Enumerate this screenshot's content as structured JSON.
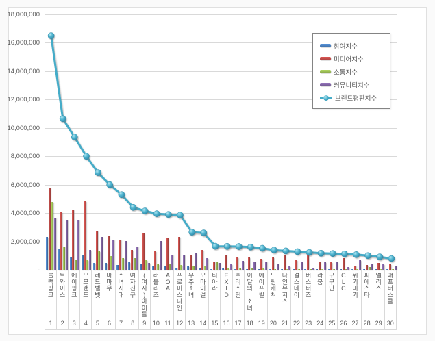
{
  "chart_data": {
    "type": "bar",
    "subtype": "grouped-bars-with-line-overlay",
    "title": "",
    "xlabel": "",
    "ylabel": "",
    "grid": true,
    "legend_position": "top-right",
    "y_axis": {
      "min": 0,
      "max": 18000000,
      "tick_step": 2000000,
      "tick_labels": [
        "18,000,000",
        "16,000,000",
        "14,000,000",
        "12,000,000",
        "10,000,000",
        "8,000,000",
        "6,000,000",
        "4,000,000",
        "2,000,000",
        "-"
      ]
    },
    "ranks": [
      "1",
      "2",
      "3",
      "4",
      "5",
      "6",
      "7",
      "8",
      "9",
      "10",
      "11",
      "12",
      "13",
      "14",
      "15",
      "16",
      "17",
      "18",
      "19",
      "20",
      "21",
      "22",
      "23",
      "24",
      "25",
      "26",
      "27",
      "28",
      "29",
      "30"
    ],
    "categories": [
      "블랙핑크",
      "트와이스",
      "에이핑크",
      "모모랜드",
      "레드벨벳",
      "마마무",
      "소녀시대",
      "여자친구",
      "(여자)아이들",
      "러블리즈",
      "AOA",
      "프로미스나인",
      "우주소녀",
      "오마이걸",
      "티아라",
      "EXID",
      "프리스틴",
      "이달의 소녀",
      "에이프릴",
      "드림캐쳐",
      "나인뮤지스",
      "걸스데이",
      "버스터즈",
      "라붐",
      "구구단",
      "CLC",
      "위키미키",
      "피에스타",
      "엘리스",
      "애프터스쿨"
    ],
    "series": [
      {
        "name": "참여지수",
        "key": "participation-index",
        "type": "bar",
        "color": "#4A7EBB",
        "values": [
          2300000,
          1450000,
          850000,
          1050000,
          480000,
          500000,
          360000,
          550000,
          450000,
          220000,
          220000,
          160000,
          220000,
          150000,
          60000,
          80000,
          60000,
          60000,
          60000,
          40000,
          30000,
          40000,
          20000,
          30000,
          30000,
          30000,
          30000,
          30000,
          20000,
          20000
        ]
      },
      {
        "name": "미디어지수",
        "key": "media-index",
        "type": "bar",
        "color": "#BE4B48",
        "values": [
          5780000,
          4050000,
          4270000,
          4850000,
          2730000,
          2410000,
          2100000,
          1400000,
          2570000,
          1280000,
          2200000,
          2300000,
          1020000,
          1400000,
          600000,
          1050000,
          860000,
          860000,
          750000,
          880000,
          1020000,
          660000,
          1080000,
          560000,
          550000,
          840000,
          310000,
          320000,
          470000,
          400000
        ]
      },
      {
        "name": "소통지수",
        "key": "communication-index",
        "type": "bar",
        "color": "#98B954",
        "values": [
          4760000,
          1620000,
          700000,
          700000,
          1310000,
          960000,
          820000,
          800000,
          660000,
          400000,
          400000,
          340000,
          260000,
          250000,
          520000,
          120000,
          100000,
          80000,
          110000,
          50000,
          50000,
          60000,
          40000,
          50000,
          40000,
          40000,
          50000,
          200000,
          40000,
          60000
        ]
      },
      {
        "name": "커뮤니티지수",
        "key": "community-index",
        "type": "bar",
        "color": "#8064A2",
        "values": [
          3660000,
          3530000,
          3530000,
          1400000,
          2330000,
          2130000,
          2020000,
          1650000,
          470000,
          2050000,
          1080000,
          1050000,
          1150000,
          800000,
          480000,
          400000,
          620000,
          600000,
          600000,
          420000,
          230000,
          520000,
          90000,
          530000,
          530000,
          210000,
          680000,
          450000,
          380000,
          310000
        ]
      },
      {
        "name": "브랜드평판지수",
        "key": "brand-reputation-index",
        "type": "line",
        "color": "#45ACC8",
        "values": [
          16500000,
          10650000,
          9350000,
          8000000,
          6850000,
          6000000,
          5300000,
          4400000,
          4150000,
          3950000,
          3900000,
          3850000,
          2650000,
          2600000,
          1660000,
          1650000,
          1640000,
          1600000,
          1520000,
          1390000,
          1330000,
          1280000,
          1230000,
          1170000,
          1150000,
          1120000,
          1070000,
          1000000,
          910000,
          790000
        ]
      }
    ]
  }
}
